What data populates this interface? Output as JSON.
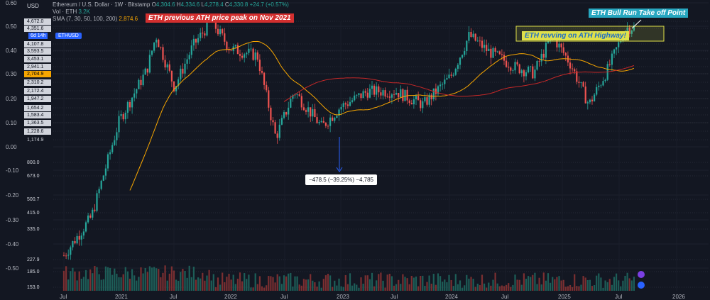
{
  "header": {
    "currency": "USD",
    "symbol_line": "Ethereum / U.S. Dollar · 1W · Bitstamp",
    "ohlc": {
      "o_label": "O",
      "o": "4,304.6",
      "h_label": "H",
      "h": "4,334.6",
      "l_label": "L",
      "l": "4,278.4",
      "c_label": "C",
      "c": "4,330.8",
      "change": "+24.7 (+0.57%)"
    },
    "vol_label": "Vol · ETH",
    "vol_value": "3.2K",
    "sma_label": "SMA (7, 30, 50, 100, 200)",
    "sma_value": "2,874.6"
  },
  "badges": {
    "countdown": "6d 14h",
    "ticker": "ETHUSD"
  },
  "annotations": {
    "red_note": "ETH previous ATH price peak on Nov 2021",
    "cyan_note": "ETH Bull Run Take off Point",
    "yellow_note": "ETH revving on ATH Highway!",
    "measure": "−478.5 (−39.25%) −4,785"
  },
  "axes": {
    "left_ticks": [
      "0.60",
      "0.50",
      "0.40",
      "0.30",
      "0.20",
      "0.10",
      "0.00",
      "-0.10",
      "-0.20",
      "-0.30",
      "-0.40",
      "-0.50"
    ],
    "price_labels": [
      "4,672.0",
      "4,351.6",
      "4,107.8",
      "3,593.5",
      "3,453.1",
      "2,941.1",
      "2,704.9",
      "2,310.2",
      "2,172.4",
      "1,947.2",
      "1,654.2",
      "1,583.4",
      "1,363.5",
      "1,228.6",
      "1,174.9",
      "800.0",
      "673.0",
      "500.7",
      "415.0",
      "335.0",
      "227.9",
      "185.0",
      "153.0"
    ],
    "x_labels": [
      "Jul",
      "2021",
      "Jul",
      "2022",
      "Jul",
      "2023",
      "Jul",
      "2024",
      "Jul",
      "2025",
      "Jul",
      "2026"
    ]
  },
  "chart_data": {
    "type": "line",
    "title": "Ethereum / U.S. Dollar · 1W · Bitstamp",
    "x_label": "",
    "y_label": "USD",
    "x": [
      "2020-07",
      "2020-10",
      "2021-01",
      "2021-04",
      "2021-05",
      "2021-07",
      "2021-09",
      "2021-11",
      "2022-01",
      "2022-04",
      "2022-06",
      "2022-08",
      "2022-11",
      "2023-01",
      "2023-04",
      "2023-07",
      "2023-10",
      "2024-01",
      "2024-03",
      "2024-05",
      "2024-08",
      "2024-10",
      "2024-12",
      "2025-02",
      "2025-04",
      "2025-06",
      "2025-08",
      "2025-09"
    ],
    "series": [
      {
        "name": "ETHUSD close",
        "values": [
          230,
          380,
          1300,
          2500,
          3900,
          2000,
          3400,
          4700,
          3300,
          3000,
          1050,
          1900,
          1200,
          1550,
          1900,
          1900,
          1600,
          2300,
          3900,
          3200,
          2600,
          2400,
          3900,
          2700,
          1600,
          2500,
          4300,
          4330
        ]
      },
      {
        "name": "SMA",
        "values": [
          null,
          null,
          null,
          null,
          null,
          null,
          null,
          null,
          null,
          null,
          null,
          null,
          null,
          null,
          null,
          null,
          null,
          null,
          null,
          null,
          null,
          null,
          null,
          null,
          null,
          null,
          null,
          2874.6
        ]
      }
    ],
    "colors": {
      "up": "#26a69a",
      "down": "#ef5350",
      "sma_orange": "#f7a600",
      "sma_red": "#c62828"
    },
    "grid": true
  }
}
